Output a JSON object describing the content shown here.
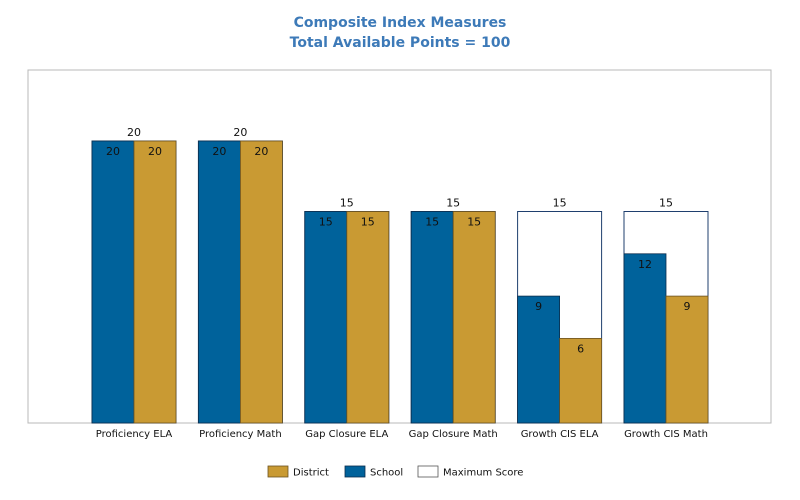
{
  "chart_data": {
    "type": "bar",
    "title": "Composite Index Measures",
    "subtitle": "Total Available Points = 100",
    "categories": [
      "Proficiency ELA",
      "Proficiency Math",
      "Gap Closure ELA",
      "Gap Closure Math",
      "Growth CIS ELA",
      "Growth CIS Math"
    ],
    "series": [
      {
        "name": "School",
        "values": [
          20,
          20,
          15,
          15,
          9,
          12
        ]
      },
      {
        "name": "District",
        "values": [
          20,
          20,
          15,
          15,
          6,
          9
        ]
      },
      {
        "name": "Maximum Score",
        "values": [
          20,
          20,
          15,
          15,
          15,
          15
        ]
      }
    ],
    "legend_order": [
      "District",
      "School",
      "Maximum Score"
    ],
    "legend_position": "bottom",
    "ylim": [
      0,
      25
    ],
    "grid": false,
    "colors": {
      "School": "#00629b",
      "District": "#c99a33",
      "Maximum Score": "#ffffff",
      "max_outline": "#1f3f6e",
      "title": "#3d7ab8",
      "frame": "#b8b8b8"
    }
  }
}
